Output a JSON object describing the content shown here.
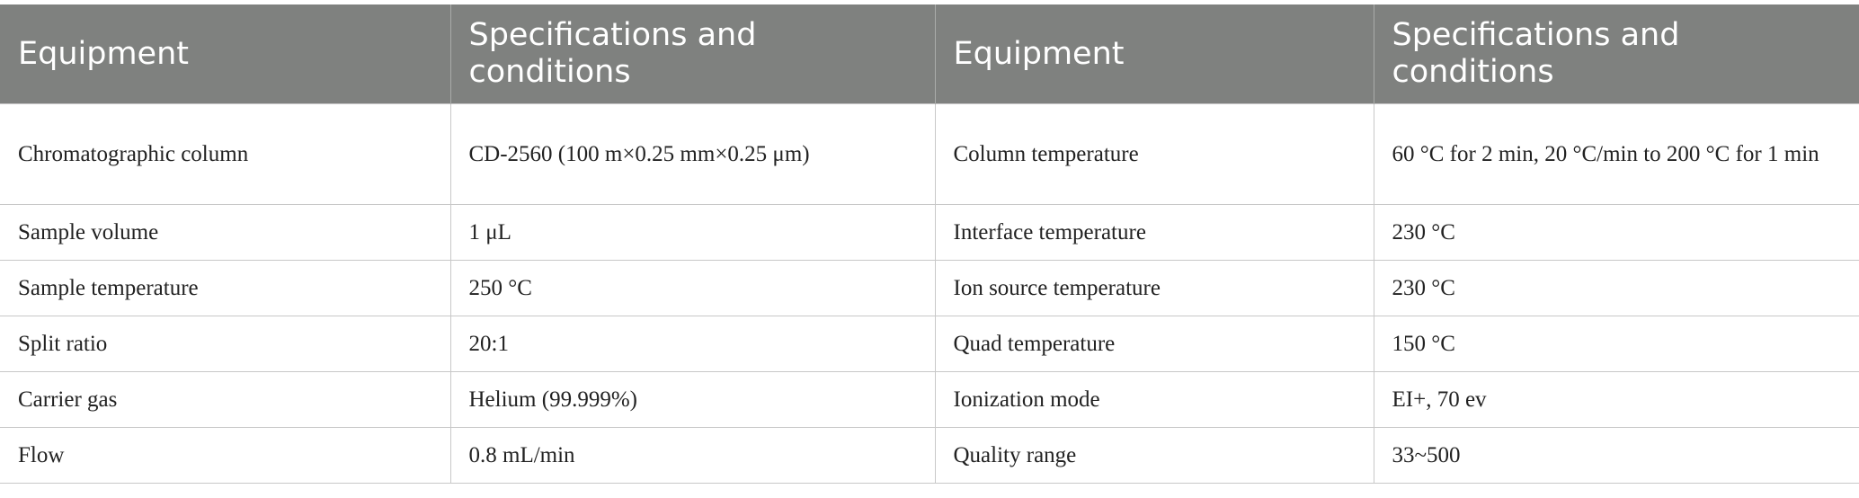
{
  "table": {
    "headers": [
      "Equipment",
      "Specifications and conditions",
      "Equipment",
      "Specifications and conditions"
    ],
    "rows": [
      [
        "Chromatographic column",
        "CD-2560 (100 m×0.25 mm×0.25 μm)",
        "Column temperature",
        "60 °C for 2 min, 20 °C/min to 200 °C for 1 min"
      ],
      [
        "Sample volume",
        "1 μL",
        "Interface temperature",
        "230 °C"
      ],
      [
        "Sample temperature",
        "250 °C",
        "Ion source temperature",
        "230 °C"
      ],
      [
        "Split ratio",
        "20:1",
        "Quad temperature",
        "150 °C"
      ],
      [
        "Carrier gas",
        "Helium (99.999%)",
        "Ionization mode",
        "EI+, 70 ev"
      ],
      [
        "Flow",
        "0.8 mL/min",
        "Quality range",
        "33~500"
      ]
    ]
  }
}
